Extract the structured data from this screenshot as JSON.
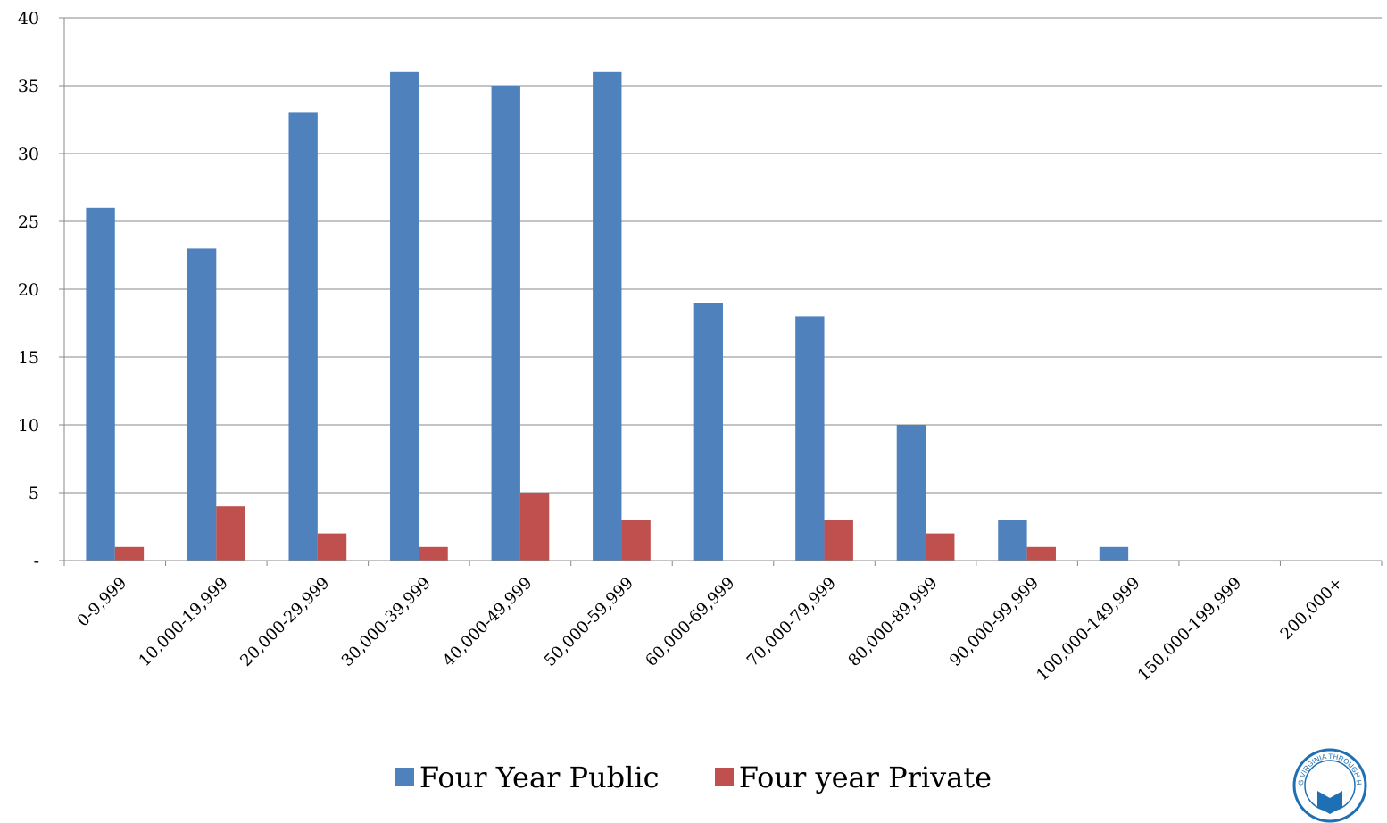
{
  "chart_data": {
    "type": "bar",
    "categories": [
      "0-9,999",
      "10,000-19,999",
      "20,000-29,999",
      "30,000-39,999",
      "40,000-49,999",
      "50,000-59,999",
      "60,000-69,999",
      "70,000-79,999",
      "80,000-89,999",
      "90,000-99,999",
      "100,000-149,999",
      "150,000-199,999",
      "200,000+"
    ],
    "series": [
      {
        "name": "Four Year Public",
        "color": "#4F81BD",
        "values": [
          26,
          23,
          33,
          36,
          35,
          36,
          19,
          18,
          10,
          3,
          1,
          0,
          0
        ]
      },
      {
        "name": "Four year Private",
        "color": "#C0504D",
        "values": [
          1,
          4,
          2,
          1,
          5,
          3,
          0,
          3,
          2,
          1,
          0,
          0,
          0
        ]
      }
    ],
    "y_ticks": [
      "-",
      "5",
      "10",
      "15",
      "20",
      "25",
      "30",
      "35",
      "40"
    ],
    "ylim": [
      0,
      40
    ],
    "grid": true,
    "legend_position": "bottom",
    "title": "",
    "xlabel": "",
    "ylabel": ""
  },
  "logo": {
    "text": "G VIRGINIA THROUGH HIGHER ED",
    "color": "#1f6fb4"
  }
}
